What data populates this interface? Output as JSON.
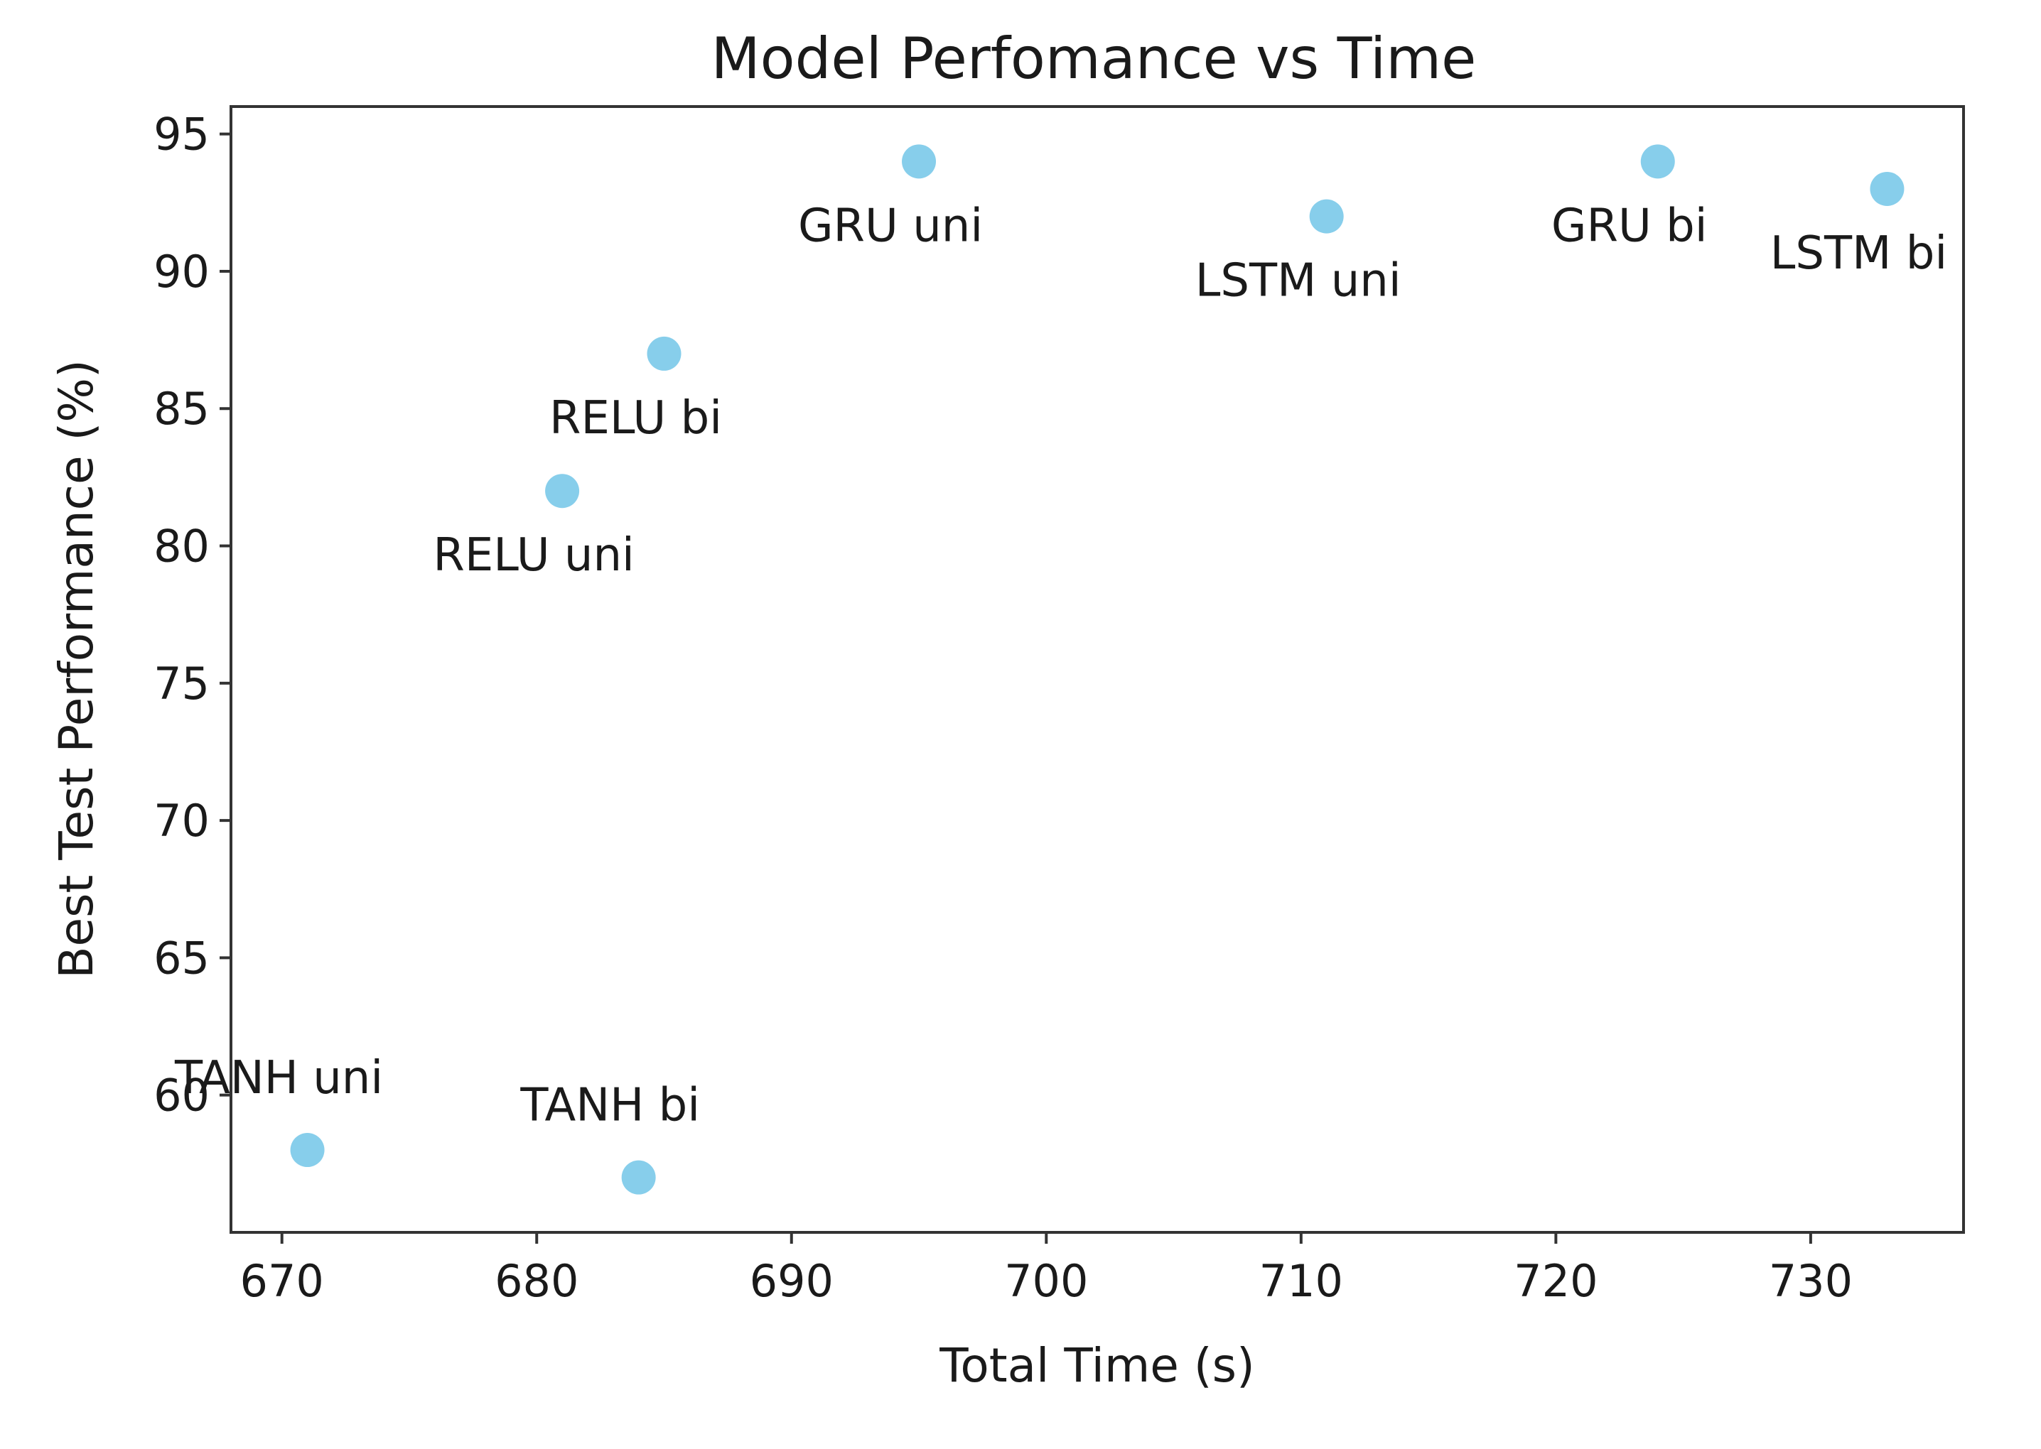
{
  "chart_data": {
    "type": "scatter",
    "title": "Model Perfomance vs Time",
    "xlabel": "Total Time (s)",
    "ylabel": "Best Test Performance (%)",
    "xlim": [
      668,
      736
    ],
    "ylim": [
      55,
      96
    ],
    "xticks": [
      670,
      680,
      690,
      700,
      710,
      720,
      730
    ],
    "yticks": [
      60,
      65,
      70,
      75,
      80,
      85,
      90,
      95
    ],
    "grid": false,
    "marker_color": "#87ceeb",
    "points": [
      {
        "label": "TANH uni",
        "x": 671,
        "y": 58,
        "label_pos": "above"
      },
      {
        "label": "TANH bi",
        "x": 684,
        "y": 57,
        "label_pos": "above"
      },
      {
        "label": "RELU uni",
        "x": 681,
        "y": 82,
        "label_pos": "below"
      },
      {
        "label": "RELU bi",
        "x": 685,
        "y": 87,
        "label_pos": "below"
      },
      {
        "label": "GRU uni",
        "x": 695,
        "y": 94,
        "label_pos": "below"
      },
      {
        "label": "LSTM uni",
        "x": 711,
        "y": 92,
        "label_pos": "below"
      },
      {
        "label": "GRU bi",
        "x": 724,
        "y": 94,
        "label_pos": "below"
      },
      {
        "label": "LSTM bi",
        "x": 733,
        "y": 93,
        "label_pos": "below"
      }
    ]
  }
}
